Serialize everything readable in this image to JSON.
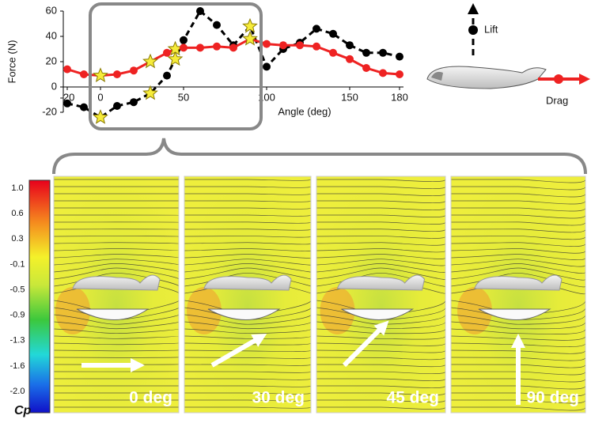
{
  "chart_data": {
    "type": "line",
    "x_label": "Angle (deg)",
    "y_label": "Force (N)",
    "x": [
      -20,
      -10,
      0,
      10,
      20,
      30,
      40,
      45,
      50,
      60,
      70,
      80,
      90,
      100,
      110,
      120,
      130,
      140,
      150,
      160,
      170,
      180
    ],
    "series": [
      {
        "name": "Lift",
        "color": "#000000",
        "dashed": true,
        "values": [
          -13,
          -16,
          -24,
          -15,
          -12,
          -5,
          9,
          22,
          37,
          60,
          49,
          33,
          48,
          16,
          30,
          35,
          46,
          42,
          33,
          27,
          27,
          24
        ]
      },
      {
        "name": "Drag",
        "color": "#ee2222",
        "dashed": false,
        "values": [
          14,
          10,
          9,
          10,
          13,
          20,
          27,
          30,
          31,
          31,
          32,
          31,
          38,
          34,
          33,
          33,
          32,
          27,
          22,
          15,
          11,
          10
        ]
      }
    ],
    "highlight_x": [
      0,
      30,
      45,
      90
    ],
    "xlim": [
      -20,
      180
    ],
    "xticks": [
      -20,
      0,
      50,
      100,
      150,
      180
    ],
    "ylim": [
      -20,
      60
    ],
    "yticks": [
      -20,
      0,
      20,
      40,
      60
    ]
  },
  "colorbar": {
    "title": "Cp",
    "labels": [
      "1.0",
      "0.6",
      "0.3",
      "-0.1",
      "-0.5",
      "-0.9",
      "-1.3",
      "-1.6",
      "-2.0"
    ]
  },
  "panels": [
    {
      "label": "0 deg"
    },
    {
      "label": "30 deg"
    },
    {
      "label": "45 deg"
    },
    {
      "label": "90 deg"
    }
  ]
}
